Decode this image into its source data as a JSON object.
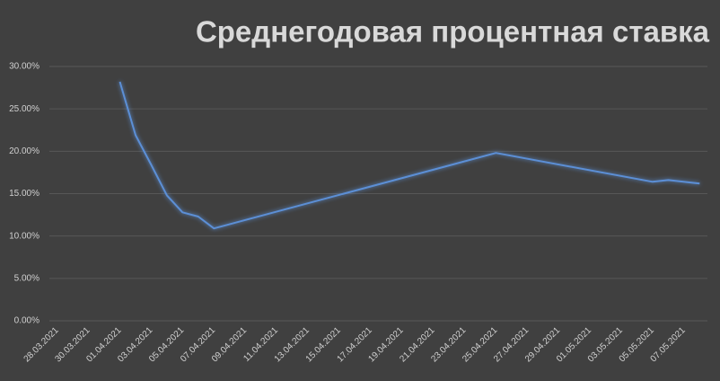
{
  "chart_data": {
    "type": "line",
    "title": "Среднегодовая процентная ставка",
    "x": [
      "01.04.2021",
      "02.04.2021",
      "03.04.2021",
      "04.04.2021",
      "05.04.2021",
      "06.04.2021",
      "07.04.2021",
      "25.04.2021",
      "05.05.2021",
      "06.05.2021",
      "08.05.2021"
    ],
    "series": [
      {
        "name": "Среднегодовая процентная ставка",
        "color": "#5b8fd6",
        "values": [
          28.2,
          21.9,
          18.4,
          14.8,
          12.8,
          12.3,
          10.9,
          19.8,
          16.4,
          16.6,
          16.2
        ]
      }
    ],
    "xlim": [
      "28.03.2021",
      "08.05.2021"
    ],
    "xticks": [
      "28.03.2021",
      "30.03.2021",
      "01.04.2021",
      "03.04.2021",
      "05.04.2021",
      "07.04.2021",
      "09.04.2021",
      "11.04.2021",
      "13.04.2021",
      "15.04.2021",
      "17.04.2021",
      "19.04.2021",
      "21.04.2021",
      "23.04.2021",
      "25.04.2021",
      "27.04.2021",
      "29.04.2021",
      "01.05.2021",
      "03.05.2021",
      "05.05.2021",
      "07.05.2021"
    ],
    "ylim": [
      0,
      30
    ],
    "yticks": [
      {
        "value": 0,
        "label": "0.00%"
      },
      {
        "value": 5,
        "label": "5.00%"
      },
      {
        "value": 10,
        "label": "10.00%"
      },
      {
        "value": 15,
        "label": "15.00%"
      },
      {
        "value": 20,
        "label": "20.00%"
      },
      {
        "value": 25,
        "label": "25.00%"
      },
      {
        "value": 30,
        "label": "30.00%"
      }
    ],
    "grid": true
  }
}
